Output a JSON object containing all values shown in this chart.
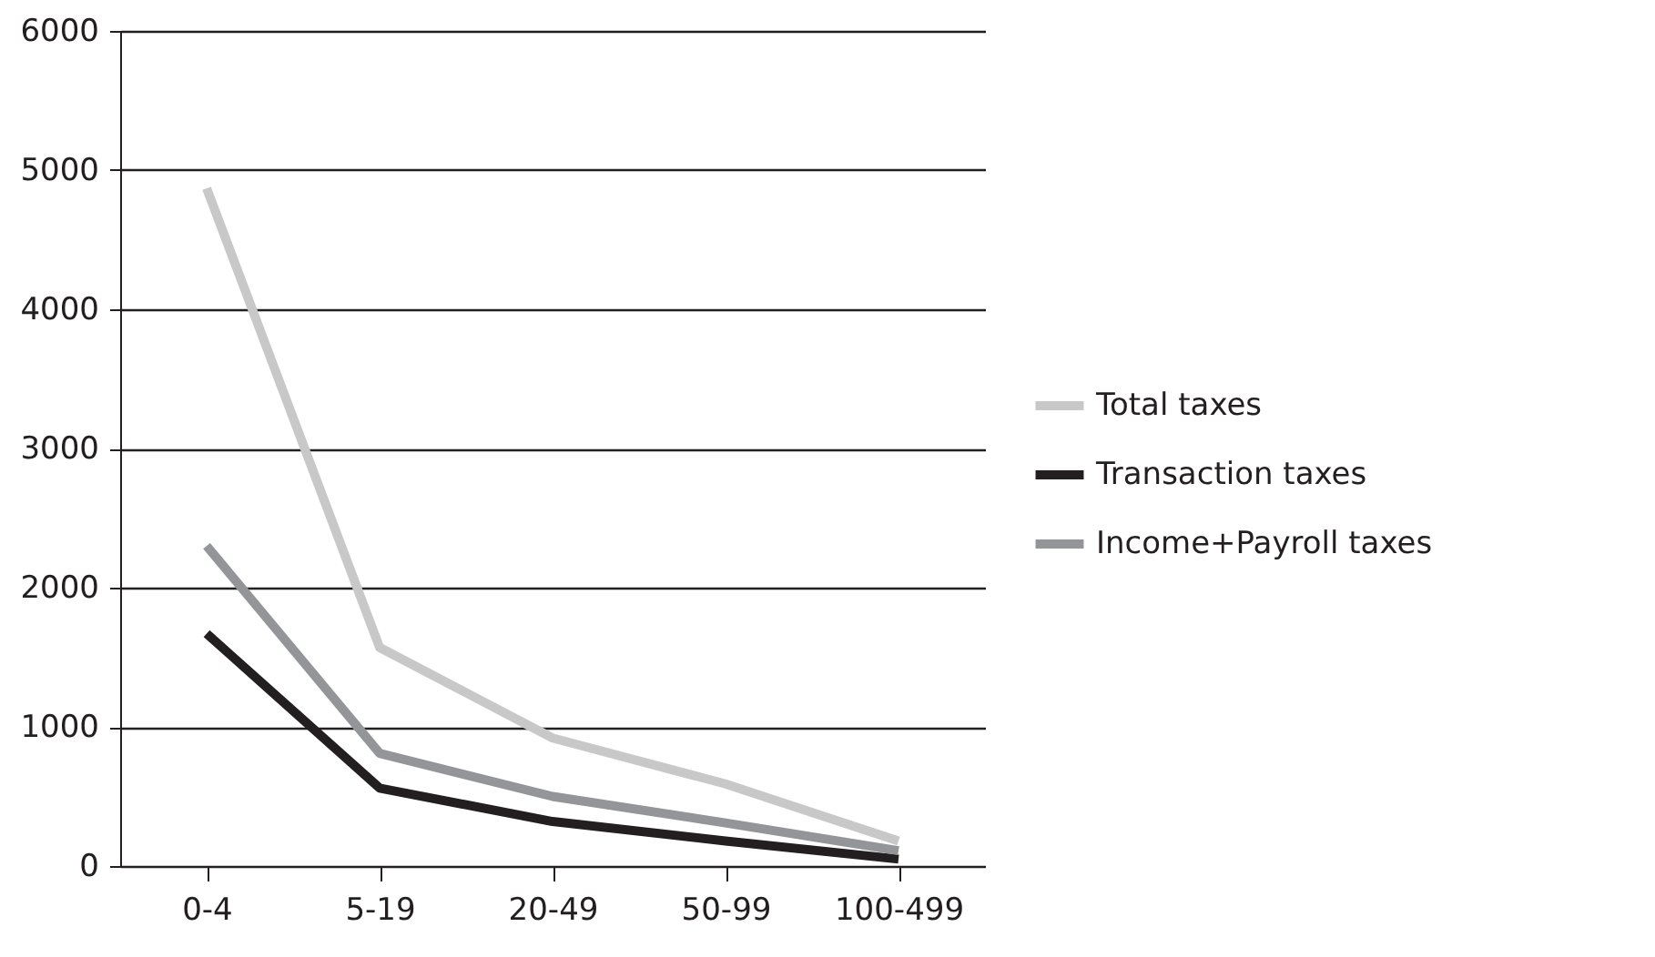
{
  "chart_data": {
    "type": "line",
    "categories": [
      "0-4",
      "5-19",
      "20-49",
      "50-99",
      "100-499"
    ],
    "series": [
      {
        "name": "Total taxes",
        "color": "#c8c8c8",
        "values": [
          4870,
          1570,
          920,
          590,
          180
        ]
      },
      {
        "name": "Transaction taxes",
        "color": "#231f20",
        "values": [
          1670,
          560,
          320,
          180,
          50
        ]
      },
      {
        "name": "Income+Payroll taxes",
        "color": "#939598",
        "values": [
          2300,
          810,
          500,
          310,
          110
        ]
      }
    ],
    "ylim": [
      0,
      6000
    ],
    "yticks": [
      0,
      1000,
      2000,
      3000,
      4000,
      5000,
      6000
    ],
    "grid": "y",
    "legend": "right",
    "marker": "none",
    "line_style": "solid"
  }
}
